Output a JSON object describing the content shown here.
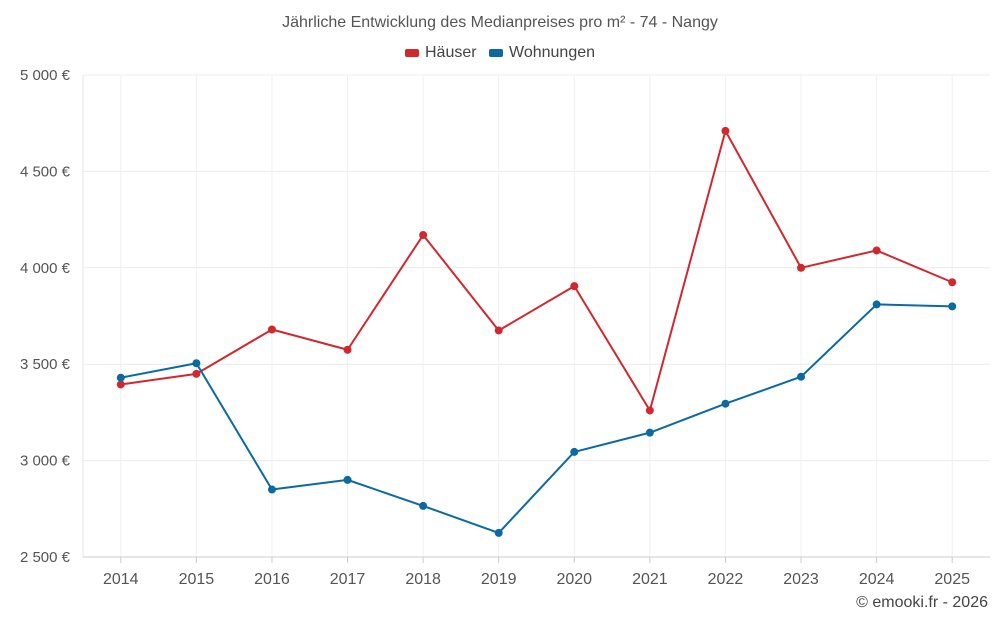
{
  "chart_data": {
    "type": "line",
    "title": "Jährliche Entwicklung des Medianpreises pro m² - 74 - Nangy",
    "categories": [
      "2014",
      "2015",
      "2016",
      "2017",
      "2018",
      "2019",
      "2020",
      "2021",
      "2022",
      "2023",
      "2024",
      "2025"
    ],
    "series": [
      {
        "name": "Häuser",
        "color": "#d0282e",
        "values": [
          3395,
          3450,
          3680,
          3575,
          4170,
          3675,
          3905,
          3260,
          4710,
          4000,
          4090,
          3925
        ]
      },
      {
        "name": "Wohnungen",
        "color": "#0b6aa2",
        "values": [
          3430,
          3505,
          2850,
          2900,
          2765,
          2625,
          3045,
          3145,
          3295,
          3435,
          3810,
          3800
        ]
      }
    ],
    "ylim": [
      2500,
      5000
    ],
    "yticks": [
      2500,
      3000,
      3500,
      4000,
      4500,
      5000
    ],
    "ytick_labels": [
      "2 500 €",
      "3 000 €",
      "3 500 €",
      "4 000 €",
      "4 500 €",
      "5 000 €"
    ],
    "xlabel": "",
    "ylabel": "",
    "grid": true,
    "legend_position": "top-center"
  },
  "credit": "© emooki.fr - 2026"
}
